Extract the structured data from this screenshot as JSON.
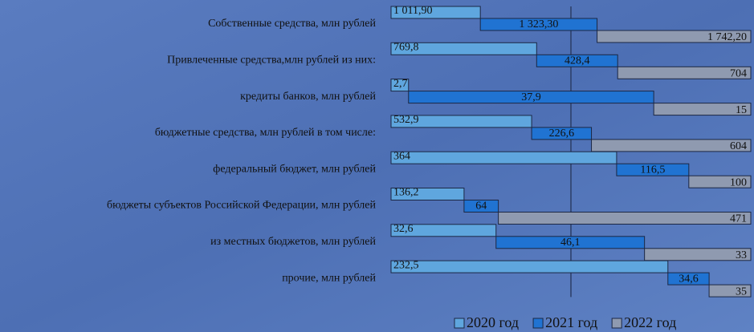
{
  "chart_data": {
    "type": "bar",
    "orientation": "horizontal",
    "stacked": "percent",
    "layout": "staggered",
    "categories": [
      "Собственные средства, млн рублей",
      "Привлеченные средства,млн рублей из них:",
      "кредиты банков, млн рублей",
      "бюджетные средства, млн рублей в том числе:",
      "федеральный бюджет, млн рублей",
      "бюджеты субъектов Российской Федерации, млн рублей",
      "из местных бюджетов, млн рублей",
      "прочие, млн рублей"
    ],
    "series": [
      {
        "name": "2020 год",
        "color": "#5fa6de",
        "values": [
          1011.9,
          769.8,
          2.7,
          532.9,
          364,
          136.2,
          32.6,
          232.5
        ],
        "value_labels": [
          "1 011,90",
          "769,8",
          "2,7",
          "532,9",
          "364",
          "136,2",
          "32,6",
          "232,5"
        ]
      },
      {
        "name": "2021 год",
        "color": "#2073d2",
        "values": [
          1323.3,
          428.4,
          37.9,
          226.6,
          116.5,
          64,
          46.1,
          34.6
        ],
        "value_labels": [
          "1 323,30",
          "428,4",
          "37,9",
          "226,6",
          "116,5",
          "64",
          "46,1",
          "34,6"
        ]
      },
      {
        "name": "2022 год",
        "color": "#8f9ab0",
        "values": [
          1742.2,
          704,
          15,
          604,
          100,
          471,
          33,
          35
        ],
        "value_labels": [
          "1 742,20",
          "704",
          "15",
          "604",
          "100",
          "471",
          "33",
          "35"
        ]
      }
    ],
    "xlim": [
      0,
      100
    ],
    "xticks": [
      50
    ],
    "grid": true,
    "legend": "bottom-right"
  }
}
